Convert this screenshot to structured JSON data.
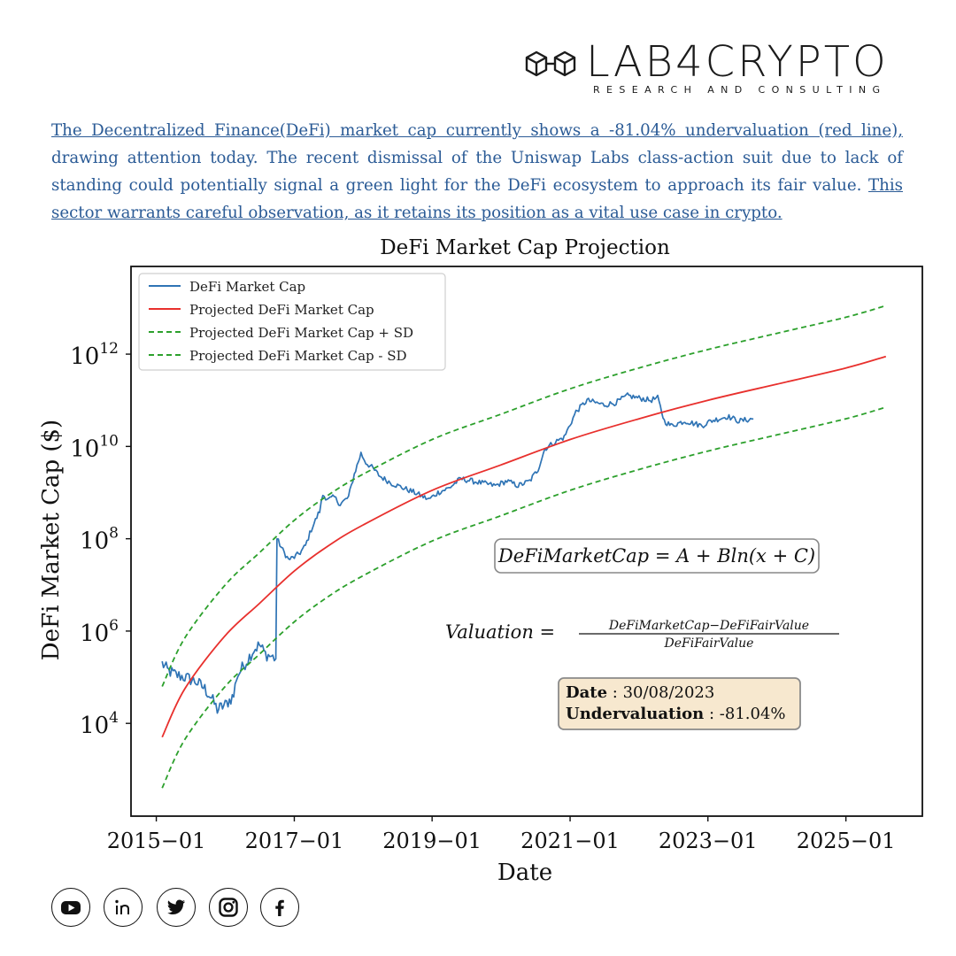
{
  "brand": {
    "name": "LAB4CRYPTO",
    "tagline": "RESEARCH AND CONSULTING",
    "icon": "linked-cubes-icon"
  },
  "intro": {
    "line1": "The Decentralized Finance(DeFi) market cap currently shows a -81.04% undervaluation (red line),",
    "line2": "drawing attention today. The recent dismissal of the Uniswap Labs class-action suit due to lack of",
    "line3": "standing could potentially signal a green light for the DeFi ecosystem to approach its fair value.",
    "line4": "This sector warrants careful observation, as it retains its position as a vital use case in crypto."
  },
  "chart_data": {
    "type": "line",
    "title": "DeFi Market Cap Projection",
    "xlabel": "Date",
    "ylabel": "DeFi Market Cap ($)",
    "yscale": "log",
    "xlim": [
      "2014-08-20",
      "2026-02-10"
    ],
    "ylim_log10": [
      1.99,
      13.9
    ],
    "x_ticks": [
      "2015−01",
      "2017−01",
      "2019−01",
      "2021−01",
      "2023−01",
      "2025−01"
    ],
    "y_ticks": [
      {
        "base": "10",
        "exp": "4"
      },
      {
        "base": "10",
        "exp": "6"
      },
      {
        "base": "10",
        "exp": "8"
      },
      {
        "base": "10",
        "exp": "10"
      },
      {
        "base": "10",
        "exp": "12"
      }
    ],
    "grid": false,
    "legend_position": "top-left",
    "colors": {
      "actual": "#2f74b5",
      "projected": "#e8302d",
      "band": "#2ca02c"
    },
    "series": [
      {
        "name": "DeFi Market Cap",
        "style": "solid",
        "color": "#2f74b5",
        "points": [
          [
            "2015-02-01",
            5.3
          ],
          [
            "2015-03-01",
            5.15
          ],
          [
            "2015-04-15",
            5.05
          ],
          [
            "2015-06-01",
            5.0
          ],
          [
            "2015-08-01",
            4.9
          ],
          [
            "2015-09-15",
            4.75
          ],
          [
            "2015-10-20",
            4.55
          ],
          [
            "2015-11-20",
            4.3
          ],
          [
            "2016-01-01",
            4.4
          ],
          [
            "2016-02-15",
            4.6
          ],
          [
            "2016-03-01",
            5.0
          ],
          [
            "2016-04-15",
            5.3
          ],
          [
            "2016-06-01",
            5.6
          ],
          [
            "2016-07-01",
            5.7
          ],
          [
            "2016-08-01",
            5.5
          ],
          [
            "2016-09-01",
            5.45
          ],
          [
            "2016-09-25",
            5.4
          ],
          [
            "2016-10-01",
            8.0
          ],
          [
            "2016-11-01",
            7.75
          ],
          [
            "2016-12-01",
            7.55
          ],
          [
            "2017-01-01",
            7.6
          ],
          [
            "2017-02-01",
            7.7
          ],
          [
            "2017-03-01",
            7.85
          ],
          [
            "2017-04-01",
            8.2
          ],
          [
            "2017-05-15",
            8.6
          ],
          [
            "2017-06-01",
            8.95
          ],
          [
            "2017-07-01",
            8.85
          ],
          [
            "2017-08-01",
            8.9
          ],
          [
            "2017-09-01",
            8.75
          ],
          [
            "2017-10-15",
            8.9
          ],
          [
            "2017-11-15",
            9.4
          ],
          [
            "2017-12-20",
            9.85
          ],
          [
            "2018-01-15",
            9.65
          ],
          [
            "2018-02-15",
            9.55
          ],
          [
            "2018-04-01",
            9.35
          ],
          [
            "2018-06-01",
            9.2
          ],
          [
            "2018-08-01",
            9.1
          ],
          [
            "2018-10-01",
            9.0
          ],
          [
            "2018-12-15",
            8.85
          ],
          [
            "2019-02-01",
            9.0
          ],
          [
            "2019-04-01",
            9.1
          ],
          [
            "2019-06-01",
            9.3
          ],
          [
            "2019-08-01",
            9.25
          ],
          [
            "2019-10-01",
            9.2
          ],
          [
            "2019-12-01",
            9.15
          ],
          [
            "2020-02-01",
            9.25
          ],
          [
            "2020-04-01",
            9.15
          ],
          [
            "2020-06-01",
            9.25
          ],
          [
            "2020-07-15",
            9.5
          ],
          [
            "2020-08-20",
            9.95
          ],
          [
            "2020-10-15",
            10.1
          ],
          [
            "2020-12-01",
            10.2
          ],
          [
            "2021-02-01",
            10.75
          ],
          [
            "2021-04-01",
            11.0
          ],
          [
            "2021-05-15",
            10.95
          ],
          [
            "2021-07-01",
            10.9
          ],
          [
            "2021-09-01",
            10.95
          ],
          [
            "2021-11-01",
            11.1
          ],
          [
            "2022-01-01",
            11.05
          ],
          [
            "2022-03-01",
            11.0
          ],
          [
            "2022-04-10",
            11.05
          ],
          [
            "2022-05-15",
            10.55
          ],
          [
            "2022-06-20",
            10.45
          ],
          [
            "2022-09-01",
            10.55
          ],
          [
            "2022-12-01",
            10.45
          ],
          [
            "2023-01-15",
            10.55
          ],
          [
            "2023-04-15",
            10.65
          ],
          [
            "2023-06-15",
            10.55
          ],
          [
            "2023-08-30",
            10.6
          ]
        ]
      },
      {
        "name": "Projected DeFi Market Cap",
        "style": "solid",
        "color": "#e8302d",
        "points": [
          [
            "2015-02-01",
            3.7
          ],
          [
            "2015-06-01",
            4.75
          ],
          [
            "2016-01-01",
            5.9
          ],
          [
            "2016-07-01",
            6.6
          ],
          [
            "2017-01-01",
            7.3
          ],
          [
            "2017-07-01",
            7.85
          ],
          [
            "2018-01-01",
            8.3
          ],
          [
            "2019-01-01",
            9.05
          ],
          [
            "2020-01-01",
            9.6
          ],
          [
            "2021-01-01",
            10.15
          ],
          [
            "2022-01-01",
            10.6
          ],
          [
            "2023-01-01",
            11.0
          ],
          [
            "2024-01-01",
            11.35
          ],
          [
            "2025-01-01",
            11.7
          ],
          [
            "2025-08-01",
            11.95
          ]
        ]
      },
      {
        "name": "Projected DeFi Market Cap + SD",
        "style": "dashed",
        "color": "#2ca02c",
        "points": [
          [
            "2015-02-01",
            4.8
          ],
          [
            "2015-06-01",
            5.85
          ],
          [
            "2016-01-01",
            7.0
          ],
          [
            "2016-07-01",
            7.7
          ],
          [
            "2017-01-01",
            8.4
          ],
          [
            "2017-07-01",
            8.95
          ],
          [
            "2018-01-01",
            9.4
          ],
          [
            "2019-01-01",
            10.15
          ],
          [
            "2020-01-01",
            10.7
          ],
          [
            "2021-01-01",
            11.25
          ],
          [
            "2022-01-01",
            11.7
          ],
          [
            "2023-01-01",
            12.1
          ],
          [
            "2024-01-01",
            12.45
          ],
          [
            "2025-01-01",
            12.8
          ],
          [
            "2025-08-01",
            13.05
          ]
        ]
      },
      {
        "name": "Projected DeFi Market Cap - SD",
        "style": "dashed",
        "color": "#2ca02c",
        "points": [
          [
            "2015-02-01",
            2.6
          ],
          [
            "2015-06-01",
            3.65
          ],
          [
            "2016-01-01",
            4.8
          ],
          [
            "2016-07-01",
            5.5
          ],
          [
            "2017-01-01",
            6.2
          ],
          [
            "2017-07-01",
            6.75
          ],
          [
            "2018-01-01",
            7.2
          ],
          [
            "2019-01-01",
            7.95
          ],
          [
            "2020-01-01",
            8.5
          ],
          [
            "2021-01-01",
            9.05
          ],
          [
            "2022-01-01",
            9.5
          ],
          [
            "2023-01-01",
            9.9
          ],
          [
            "2024-01-01",
            10.25
          ],
          [
            "2025-01-01",
            10.6
          ],
          [
            "2025-08-01",
            10.85
          ]
        ]
      }
    ],
    "annotations": {
      "formula": {
        "lhs": "DeFiMarketCap",
        "rhs": "= A + Bln(x + C)"
      },
      "valuation": {
        "lhs": "Valuation =",
        "numerator": "DeFiMarketCap−DeFiFairValue",
        "denominator": "DeFiFairValue"
      },
      "info_box": {
        "date_label": "Date",
        "date_value": ": 30/08/2023",
        "under_label": "Undervaluation",
        "under_value": ": -81.04%"
      }
    }
  },
  "socials": [
    {
      "icon": "youtube-icon"
    },
    {
      "icon": "linkedin-icon"
    },
    {
      "icon": "twitter-icon"
    },
    {
      "icon": "instagram-icon"
    },
    {
      "icon": "facebook-icon"
    }
  ]
}
